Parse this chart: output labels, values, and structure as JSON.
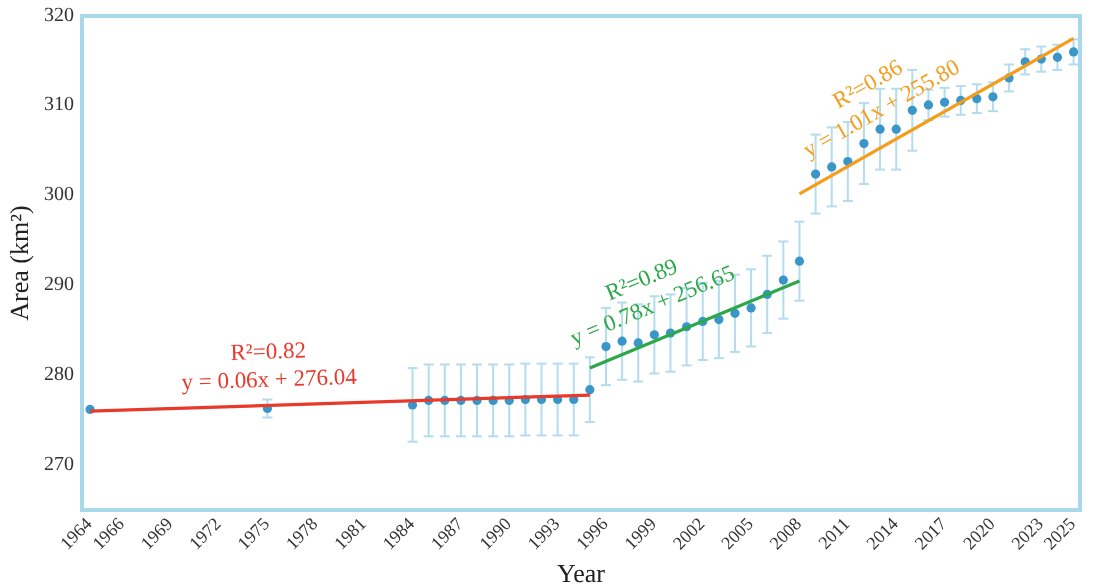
{
  "chart_data": {
    "type": "scatter",
    "xlabel": "Year",
    "ylabel": "Area (km²)",
    "xlim": [
      1963.5,
      2025.4
    ],
    "ylim": [
      265,
      320
    ],
    "xticks": [
      1964,
      1966,
      1969,
      1972,
      1975,
      1978,
      1981,
      1984,
      1987,
      1990,
      1993,
      1996,
      1999,
      2002,
      2005,
      2008,
      2011,
      2014,
      2017,
      2020,
      2023,
      2025
    ],
    "yticks": [
      270,
      280,
      290,
      300,
      310,
      320
    ],
    "grid": false,
    "series": [
      {
        "marker": "circle",
        "color": "#3a96c8",
        "x": [
          1964,
          1975,
          1984,
          1985,
          1986,
          1987,
          1988,
          1989,
          1990,
          1991,
          1992,
          1993,
          1994,
          1995,
          1996,
          1997,
          1998,
          1999,
          2000,
          2001,
          2002,
          2003,
          2004,
          2005,
          2006,
          2007,
          2008,
          2009,
          2010,
          2011,
          2012,
          2013,
          2014,
          2015,
          2016,
          2017,
          2018,
          2019,
          2020,
          2021,
          2022,
          2023,
          2024,
          2025
        ],
        "values": [
          276.2,
          276.3,
          276.7,
          277.2,
          277.2,
          277.2,
          277.2,
          277.2,
          277.2,
          277.3,
          277.3,
          277.3,
          277.3,
          278.4,
          283.2,
          283.8,
          283.6,
          284.5,
          284.7,
          285.4,
          286.0,
          286.2,
          286.9,
          287.5,
          289.0,
          290.6,
          292.7,
          302.4,
          303.2,
          303.8,
          305.8,
          307.4,
          307.4,
          309.5,
          310.1,
          310.4,
          310.6,
          310.8,
          311.0,
          313.1,
          314.9,
          315.2,
          315.4,
          316.0
        ],
        "errors": [
          null,
          1,
          4.1,
          4,
          4,
          4,
          4,
          4,
          4,
          4,
          4,
          4,
          4,
          3.6,
          4.3,
          4.3,
          4.3,
          4.3,
          4.3,
          4.3,
          4.3,
          4.3,
          4.3,
          4.3,
          4.3,
          4.3,
          4.4,
          4.4,
          4.4,
          4.4,
          4.5,
          4.5,
          4.5,
          4.5,
          1.7,
          1.6,
          1.6,
          1.6,
          1.6,
          1.5,
          1.4,
          1.4,
          1.4,
          1.4
        ]
      },
      {
        "type": "line",
        "color": "#e8392b",
        "x": [
          1964,
          1995
        ],
        "values": [
          276.0,
          277.8
        ]
      },
      {
        "type": "line",
        "color": "#2ca84a",
        "x": [
          1995,
          2008
        ],
        "values": [
          280.8,
          290.5
        ]
      },
      {
        "type": "line",
        "color": "#f59d1a",
        "x": [
          2008,
          2025
        ],
        "values": [
          300.2,
          317.5
        ]
      }
    ],
    "annotations": [
      "R²=0.82",
      "y = 0.06x + 276.04",
      "R²=0.89",
      "y = 0.78x + 256.65",
      "R²=0.86",
      "y = 1.01x + 255.80"
    ]
  }
}
